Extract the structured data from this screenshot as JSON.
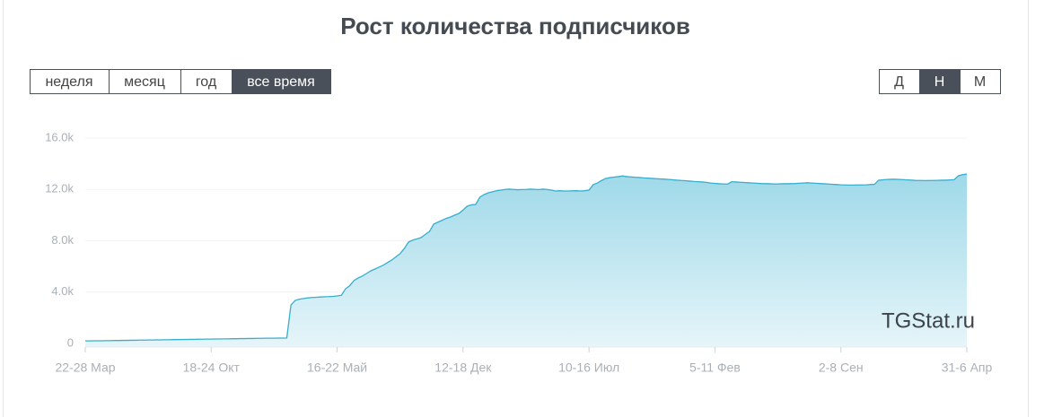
{
  "page": {
    "periods": [
      "неделя",
      "месяц",
      "год",
      "все время"
    ],
    "active_period_index": 3,
    "granularity": [
      "Д",
      "Н",
      "М"
    ],
    "active_granularity_index": 1,
    "watermark": "TGStat.ru"
  },
  "chart_data": {
    "type": "area",
    "title": "Рост количества подписчиков",
    "categories": [
      "22-28 Мар",
      null,
      null,
      null,
      null,
      null,
      null,
      null,
      null,
      null,
      null,
      null,
      null,
      null,
      null,
      null,
      null,
      null,
      null,
      null,
      null,
      null,
      null,
      null,
      null,
      null,
      null,
      null,
      null,
      null,
      "18-24 Окт",
      null,
      null,
      null,
      null,
      null,
      null,
      null,
      null,
      null,
      null,
      null,
      null,
      null,
      null,
      null,
      null,
      null,
      null,
      null,
      null,
      null,
      null,
      null,
      null,
      null,
      null,
      null,
      null,
      null,
      "16-22 Май",
      null,
      null,
      null,
      null,
      null,
      null,
      null,
      null,
      null,
      null,
      null,
      null,
      null,
      null,
      null,
      null,
      null,
      null,
      null,
      null,
      null,
      null,
      null,
      null,
      null,
      null,
      null,
      null,
      null,
      "12-18 Дек",
      null,
      null,
      null,
      null,
      null,
      null,
      null,
      null,
      null,
      null,
      null,
      null,
      null,
      null,
      null,
      null,
      null,
      null,
      null,
      null,
      null,
      null,
      null,
      null,
      null,
      null,
      null,
      null,
      null,
      "10-16 Июл",
      null,
      null,
      null,
      null,
      null,
      null,
      null,
      null,
      null,
      null,
      null,
      null,
      null,
      null,
      null,
      null,
      null,
      null,
      null,
      null,
      null,
      null,
      null,
      null,
      null,
      null,
      null,
      null,
      null,
      "5-11 Фев",
      null,
      null,
      null,
      null,
      null,
      null,
      null,
      null,
      null,
      null,
      null,
      null,
      null,
      null,
      null,
      null,
      null,
      null,
      null,
      null,
      null,
      null,
      null,
      null,
      null,
      null,
      null,
      null,
      null,
      "2-8 Сен",
      null,
      null,
      null,
      null,
      null,
      null,
      null,
      null,
      null,
      null,
      null,
      null,
      null,
      null,
      null,
      null,
      null,
      null,
      null,
      null,
      null,
      null,
      null,
      null,
      null,
      null,
      null,
      null,
      null,
      "31-6 Апр"
    ],
    "series": [
      {
        "color": "#37aecd",
        "values": [
          200,
          200,
          210,
          210,
          210,
          220,
          220,
          230,
          230,
          240,
          240,
          250,
          250,
          260,
          260,
          270,
          270,
          280,
          280,
          290,
          290,
          300,
          300,
          310,
          310,
          320,
          320,
          330,
          330,
          340,
          340,
          350,
          350,
          360,
          360,
          370,
          370,
          380,
          380,
          390,
          390,
          400,
          400,
          410,
          410,
          410,
          420,
          420,
          430,
          3000,
          3350,
          3450,
          3500,
          3550,
          3580,
          3600,
          3620,
          3640,
          3650,
          3670,
          3700,
          3750,
          4260,
          4500,
          4900,
          5100,
          5250,
          5450,
          5650,
          5800,
          5950,
          6100,
          6300,
          6500,
          6750,
          7000,
          7400,
          7900,
          8050,
          8150,
          8250,
          8500,
          8730,
          9300,
          9450,
          9600,
          9750,
          9850,
          10000,
          10130,
          10400,
          10700,
          10800,
          10830,
          11400,
          11600,
          11740,
          11820,
          11900,
          11950,
          12000,
          12020,
          12000,
          11980,
          11990,
          12000,
          12020,
          12010,
          11990,
          12020,
          12000,
          11950,
          11880,
          11900,
          11880,
          11880,
          11890,
          11900,
          11880,
          11900,
          11950,
          12370,
          12500,
          12700,
          12860,
          12920,
          12960,
          13000,
          13050,
          13000,
          12980,
          12950,
          12930,
          12900,
          12880,
          12860,
          12840,
          12820,
          12800,
          12780,
          12750,
          12720,
          12700,
          12680,
          12650,
          12620,
          12600,
          12580,
          12550,
          12500,
          12470,
          12440,
          12430,
          12420,
          12600,
          12580,
          12560,
          12540,
          12520,
          12500,
          12480,
          12460,
          12450,
          12440,
          12430,
          12430,
          12440,
          12440,
          12450,
          12460,
          12480,
          12500,
          12520,
          12500,
          12480,
          12460,
          12440,
          12420,
          12400,
          12380,
          12360,
          12350,
          12340,
          12340,
          12350,
          12350,
          12360,
          12380,
          12400,
          12720,
          12750,
          12780,
          12790,
          12790,
          12780,
          12760,
          12740,
          12720,
          12700,
          12700,
          12690,
          12700,
          12700,
          12710,
          12720,
          12720,
          12740,
          12760,
          13070,
          13150,
          13200
        ]
      }
    ],
    "ylim": [
      0,
      16000
    ],
    "yticks": [
      0,
      {
        "value": 4000,
        "label": "4.0k"
      },
      {
        "value": 8000,
        "label": "8.0k"
      },
      {
        "value": 12000,
        "label": "12.0k"
      },
      {
        "value": 16000,
        "label": "16.0k"
      }
    ],
    "grid": true
  }
}
